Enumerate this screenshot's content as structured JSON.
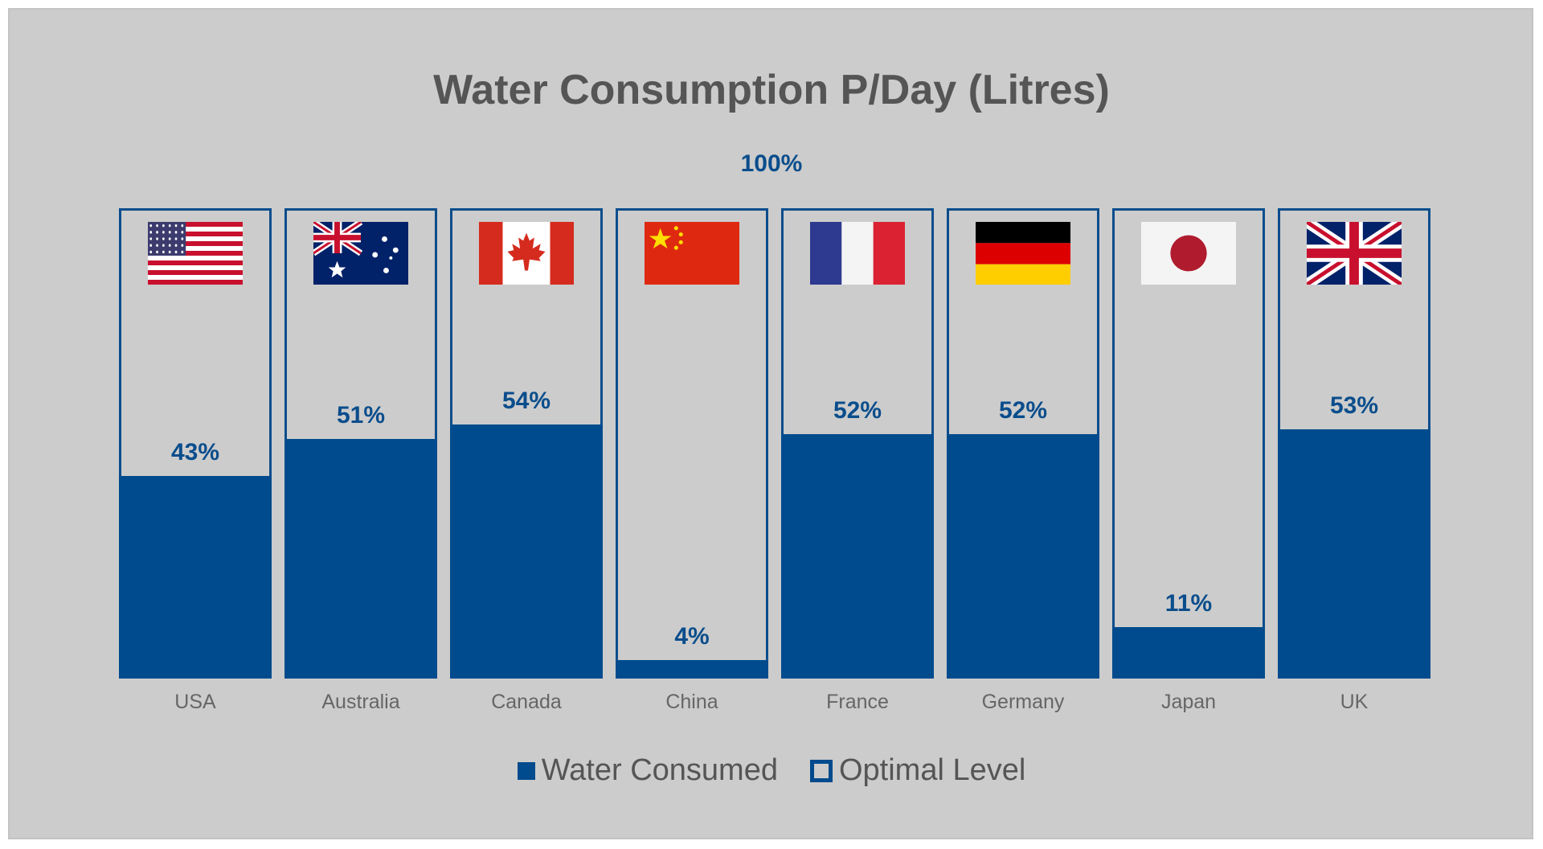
{
  "colors": {
    "consumed": "#004b8d",
    "outline": "#0a4d8c",
    "label": "#0a4d8c"
  },
  "chart_data": {
    "type": "bar",
    "title": "Water Consumption P/Day (Litres)",
    "reference_label": "100%",
    "categories": [
      "USA",
      "Australia",
      "Canada",
      "China",
      "France",
      "Germany",
      "Japan",
      "UK"
    ],
    "series": [
      {
        "name": "Water Consumed",
        "values": [
          43,
          51,
          54,
          4,
          52,
          52,
          11,
          53
        ]
      },
      {
        "name": "Optimal Level",
        "values": [
          100,
          100,
          100,
          100,
          100,
          100,
          100,
          100
        ]
      }
    ],
    "value_labels": [
      "43%",
      "51%",
      "54%",
      "4%",
      "52%",
      "52%",
      "11%",
      "53%"
    ],
    "flags": [
      "usa-flag-icon",
      "australia-flag-icon",
      "canada-flag-icon",
      "china-flag-icon",
      "france-flag-icon",
      "germany-flag-icon",
      "japan-flag-icon",
      "uk-flag-icon"
    ],
    "ylim": [
      0,
      100
    ],
    "legend_position": "bottom-center",
    "grid": false
  }
}
